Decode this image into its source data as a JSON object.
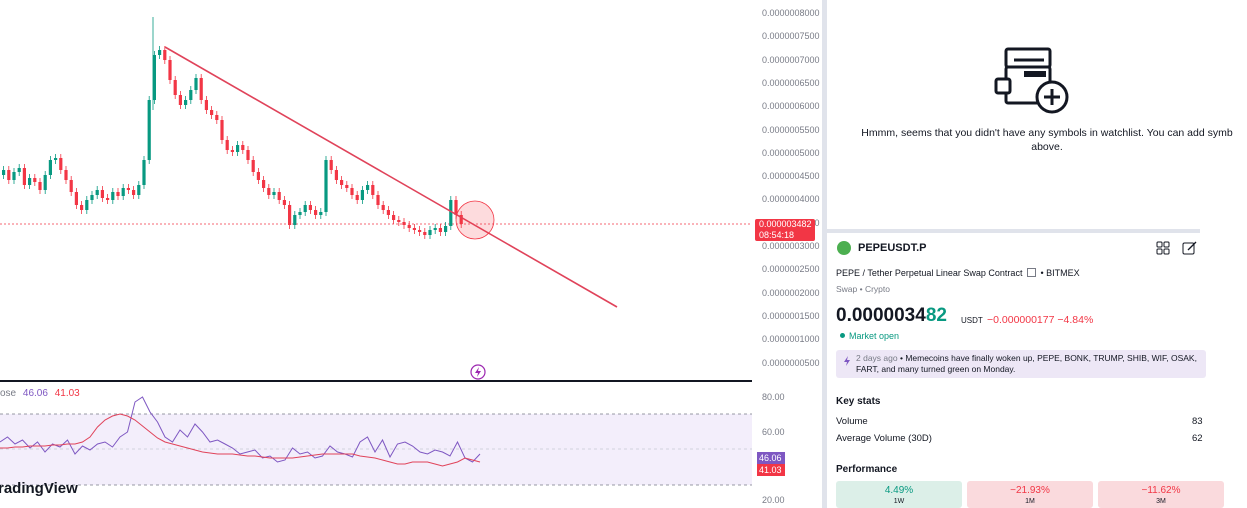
{
  "chart": {
    "price_ticks": [
      "0.0000008000",
      "0.0000007500",
      "0.0000007000",
      "0.0000006500",
      "0.0000006000",
      "0.0000005500",
      "0.0000005000",
      "0.0000004500",
      "0.0000004000",
      "0.0000003500",
      "0.0000003000",
      "0.0000002500",
      "0.0000002000",
      "0.0000001500",
      "0.0000001000",
      "0.0000000500"
    ],
    "current_price_tag": "0.000003482",
    "countdown": "08:54:18",
    "rsi_ticks": [
      "80.00",
      "60.00",
      "20.00"
    ],
    "rsi_legend_label": "ose",
    "rsi_value": "46.06",
    "rsi_ma_value": "41.03",
    "brand": "radingView",
    "colors": {
      "up": "#089981",
      "down": "#f23645",
      "trendline": "#e0435a",
      "rsi": "#7e57c2",
      "rsi_ma": "#f23645"
    }
  },
  "watchlist": {
    "empty_message": "Hmmm, seems that you didn't have any symbols in watchlist. You can add symb above.",
    "icon": "watchlist-add-icon"
  },
  "symbol": {
    "ticker": "PEPEUSDT.P",
    "description": "PEPE / Tether Perpetual Linear Swap Contract",
    "exchange": "BITMEX",
    "type": "Swap • Crypto",
    "price_main": "0.00000348",
    "price_last_digits": "2",
    "price_prefix": "0.0000034",
    "price_highlight": "82",
    "unit": "USDT",
    "change": "−0.000000177",
    "change_pct": "−4.84%",
    "market_status": "Market open",
    "news_time": "2 days ago",
    "news_text": "Memecoins have finally woken up, PEPE, BONK, TRUMP, SHIB, WIF, OSAK, FART, and many turned green on Monday."
  },
  "key_stats": {
    "title": "Key stats",
    "items": [
      {
        "label": "Volume",
        "value": "83"
      },
      {
        "label": "Average Volume (30D)",
        "value": "62"
      }
    ]
  },
  "performance": {
    "title": "Performance",
    "items": [
      {
        "value": "4.49%",
        "label": "1W",
        "sign": "pos"
      },
      {
        "value": "−21.93%",
        "label": "1M",
        "sign": "neg"
      },
      {
        "value": "−11.62%",
        "label": "3M",
        "sign": "neg"
      }
    ]
  }
}
